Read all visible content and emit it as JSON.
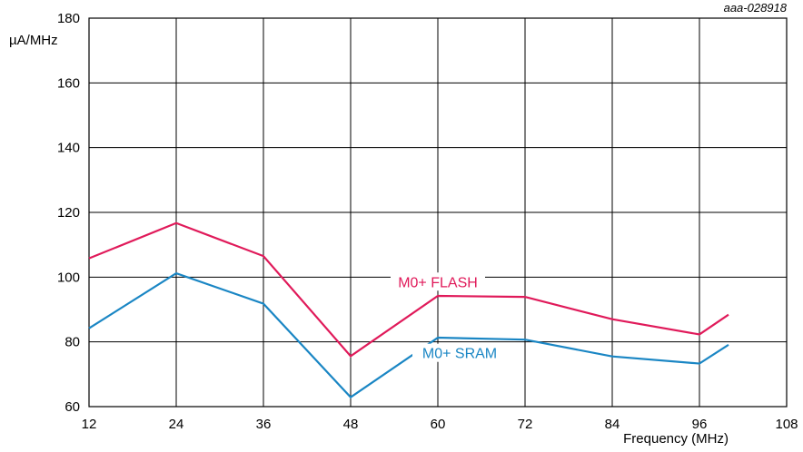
{
  "chart_data": {
    "type": "line",
    "title": "",
    "figure_id": "aaa-028918",
    "xlabel": "Frequency (MHz)",
    "ylabel": "µA/MHz",
    "xlim": [
      12,
      108
    ],
    "ylim": [
      60,
      180
    ],
    "xticks": [
      12,
      24,
      36,
      48,
      60,
      72,
      84,
      96,
      108
    ],
    "yticks": [
      60,
      80,
      100,
      120,
      140,
      160,
      180
    ],
    "grid": true,
    "legend": "none",
    "series": [
      {
        "name": "M0+ FLASH",
        "color": "#e01a5a",
        "x": [
          12,
          24,
          36,
          48,
          60,
          72,
          84,
          96,
          100
        ],
        "y": [
          105.8,
          116.7,
          106.5,
          75.6,
          94.2,
          93.9,
          87.0,
          82.3,
          88.4
        ],
        "label_at": [
          60,
          97.5
        ]
      },
      {
        "name": "M0+ SRAM",
        "color": "#1a86c4",
        "x": [
          12,
          24,
          36,
          48,
          60,
          72,
          84,
          96,
          100
        ],
        "y": [
          84.2,
          101.2,
          91.8,
          62.9,
          81.3,
          80.7,
          75.5,
          73.3,
          79.1
        ],
        "label_at": [
          63,
          75.5
        ]
      }
    ]
  }
}
